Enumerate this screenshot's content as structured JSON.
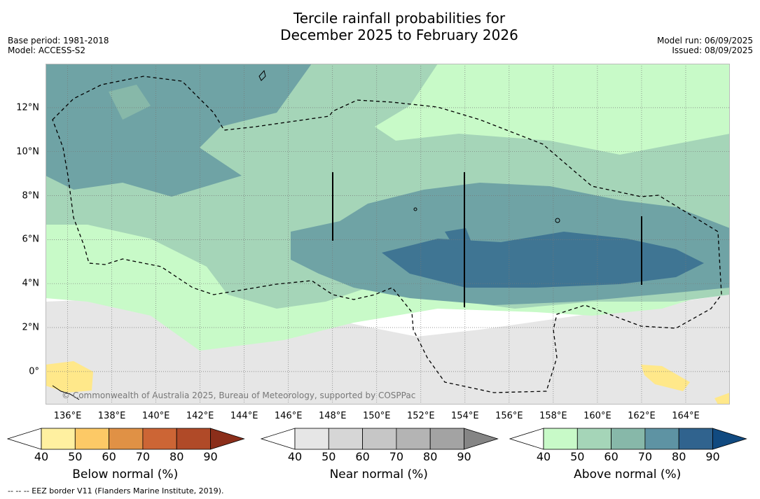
{
  "title_line1": "Tercile rainfall probabilities for",
  "title_line2": "December 2025 to February 2026",
  "base_period": "Base period: 1981-2018",
  "model": "Model: ACCESS-S2",
  "model_run": "Model run: 06/09/2025",
  "issued": "Issued: 08/09/2025",
  "copyright": "© Commonwealth of Australia 2025, Bureau of Meteorology, supported by COSPPac",
  "footnote": "--  --  -- EEZ border V11 (Flanders Marine Institute, 2019).",
  "map": {
    "lon_range": [
      135,
      166
    ],
    "lat_range": [
      -1.5,
      14
    ],
    "lon_ticks": [
      "136°E",
      "138°E",
      "140°E",
      "142°E",
      "144°E",
      "146°E",
      "148°E",
      "150°E",
      "152°E",
      "154°E",
      "156°E",
      "158°E",
      "160°E",
      "162°E",
      "164°E"
    ],
    "lat_ticks": [
      "12°N",
      "10°N",
      "8°N",
      "6°N",
      "4°N",
      "2°N",
      "0°"
    ],
    "grid": true
  },
  "colorbars": [
    {
      "title": "Below normal (%)",
      "ticks": [
        "40",
        "50",
        "60",
        "70",
        "80",
        "90"
      ],
      "colors": [
        "#fff0a0",
        "#fdc966",
        "#e09145",
        "#cc6535",
        "#b04a28",
        "#8b2e1a"
      ]
    },
    {
      "title": "Near normal (%)",
      "ticks": [
        "40",
        "50",
        "60",
        "70",
        "80",
        "90"
      ],
      "colors": [
        "#e6e6e6",
        "#d6d6d6",
        "#c6c6c6",
        "#b4b4b4",
        "#a3a3a3",
        "#858585"
      ]
    },
    {
      "title": "Above normal (%)",
      "ticks": [
        "40",
        "50",
        "60",
        "70",
        "80",
        "90"
      ],
      "colors": [
        "#c8fac8",
        "#a5d5b8",
        "#87b8a9",
        "#5e93a3",
        "#30638e",
        "#114a80"
      ]
    }
  ]
}
